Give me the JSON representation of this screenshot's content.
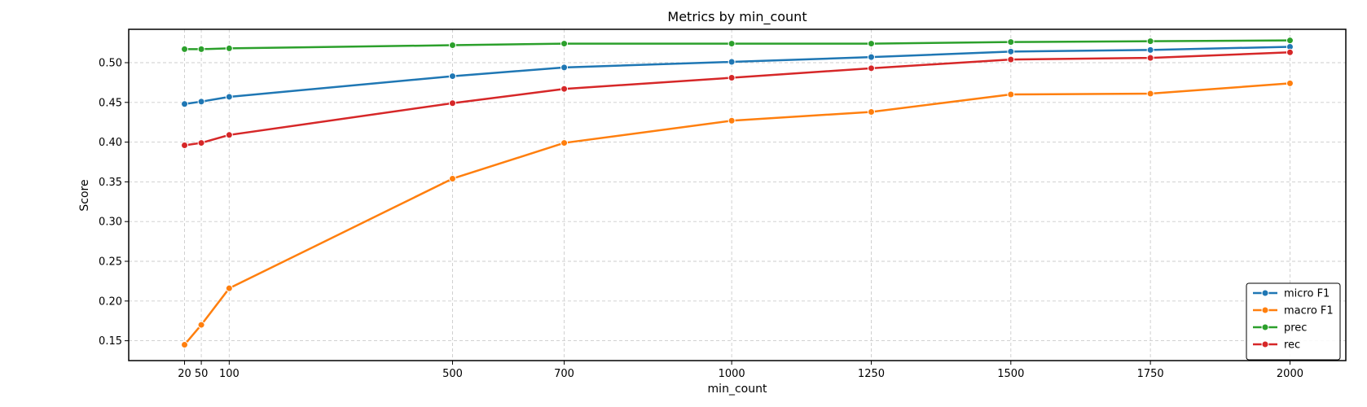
{
  "chart_data": {
    "type": "line",
    "title": "Metrics by min_count",
    "xlabel": "min_count",
    "ylabel": "Score",
    "x": [
      20,
      50,
      100,
      500,
      700,
      1000,
      1250,
      1500,
      1750,
      2000
    ],
    "x_tick_labels": [
      "20",
      "50",
      "100",
      "500",
      "700",
      "1000",
      "1250",
      "1500",
      "1750",
      "2000"
    ],
    "xlim": [
      -80,
      2100
    ],
    "ylim": [
      0.125,
      0.542
    ],
    "y_ticks": [
      0.15,
      0.2,
      0.25,
      0.3,
      0.35,
      0.4,
      0.45,
      0.5
    ],
    "y_tick_labels": [
      "0.15",
      "0.20",
      "0.25",
      "0.30",
      "0.35",
      "0.40",
      "0.45",
      "0.50"
    ],
    "grid": true,
    "legend_position": "bottom-right",
    "series": [
      {
        "name": "micro F1",
        "color": "#1f77b4",
        "values": [
          0.448,
          0.451,
          0.457,
          0.483,
          0.494,
          0.501,
          0.507,
          0.514,
          0.516,
          0.52
        ]
      },
      {
        "name": "macro F1",
        "color": "#ff7f0e",
        "values": [
          0.145,
          0.17,
          0.216,
          0.354,
          0.399,
          0.427,
          0.438,
          0.46,
          0.461,
          0.474
        ]
      },
      {
        "name": "prec",
        "color": "#2ca02c",
        "values": [
          0.517,
          0.517,
          0.518,
          0.522,
          0.524,
          0.524,
          0.524,
          0.526,
          0.527,
          0.528
        ]
      },
      {
        "name": "rec",
        "color": "#d62728",
        "values": [
          0.396,
          0.399,
          0.409,
          0.449,
          0.467,
          0.481,
          0.493,
          0.504,
          0.506,
          0.513
        ]
      }
    ]
  }
}
